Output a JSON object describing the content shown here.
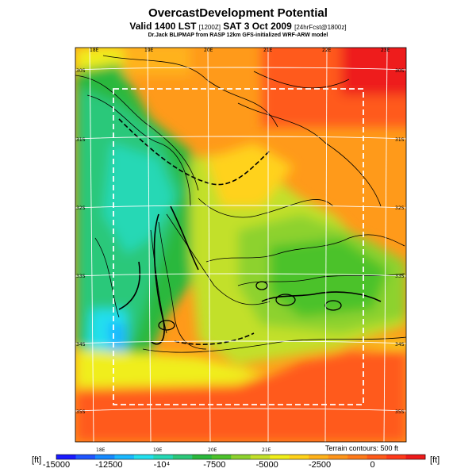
{
  "header": {
    "title": "OvercastDevelopment Potential",
    "valid_prefix": "Valid 1400 LST",
    "valid_code": "[1200Z]",
    "valid_date": "SAT 3 Oct 2009",
    "forecast_code": "[24hrFcst@1800z]",
    "credit": "Dr.Jack BLIPMAP from RASP 12km GFS-initialized WRF-ARW model"
  },
  "map": {
    "lon_labels_top": [
      "18E",
      "19E",
      "20E",
      "21E",
      "22E",
      "23E"
    ],
    "lon_labels_bottom": [
      "18E",
      "19E",
      "20E",
      "21E"
    ],
    "lat_labels_left": [
      "30S",
      "31S",
      "32S",
      "33S",
      "34S",
      "35S"
    ],
    "lat_labels_right": [
      "30S",
      "31S",
      "32S",
      "33S",
      "34S",
      "35S"
    ],
    "terrain_note": "Terrain contours: 500 ft"
  },
  "colorbar": {
    "unit_left": "[ft]",
    "unit_right": "[ft]",
    "ticks": [
      "-15000",
      "-12500",
      "-10⁴",
      "-7500",
      "-5000",
      "-2500",
      "0"
    ],
    "tick_values": [
      -15000,
      -12500,
      -10000,
      -7500,
      -5000,
      -2500,
      0
    ],
    "range": [
      -15000,
      2500
    ],
    "colors": [
      "#1a1aff",
      "#1f55ff",
      "#168aff",
      "#1ab8ff",
      "#22e0ee",
      "#25d8b5",
      "#2bc87a",
      "#2ab83c",
      "#4cc22b",
      "#8dd22e",
      "#c2e02a",
      "#f0ee1a",
      "#ffd21a",
      "#ffb21a",
      "#ff951a",
      "#ff7a1a",
      "#ff5a1a",
      "#ff3a1a",
      "#ee1a1a"
    ]
  }
}
